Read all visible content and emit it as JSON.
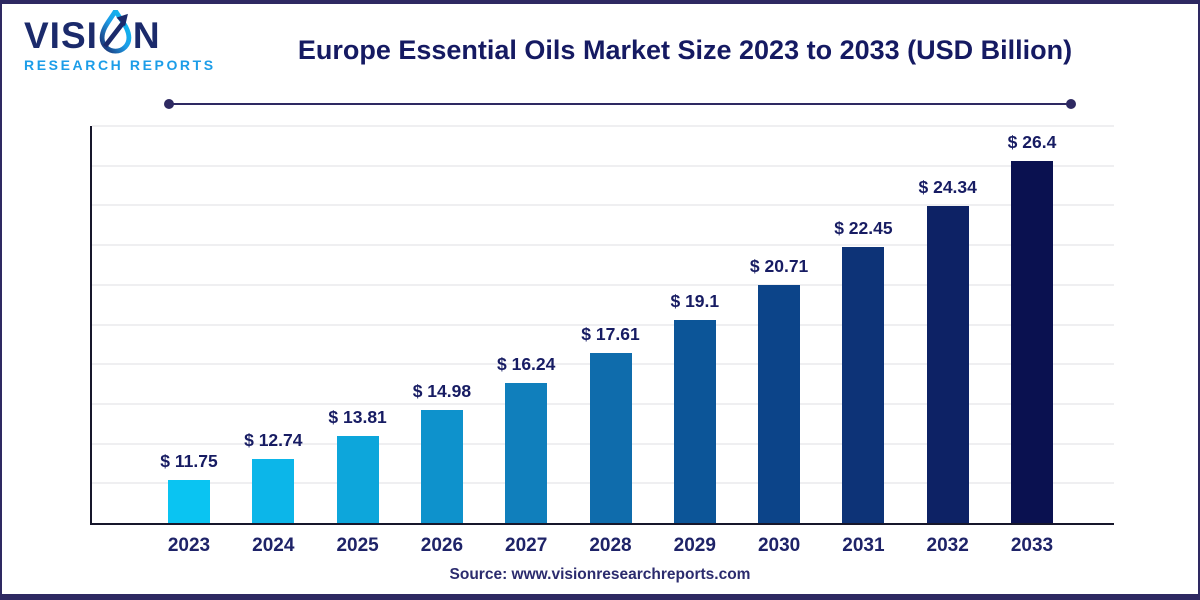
{
  "brand": {
    "name_part1": "VISI",
    "name_part2": "N",
    "subtitle": "RESEARCH REPORTS",
    "droplet_icon": "water-droplet-arrow",
    "color_primary": "#1B2A6B",
    "color_secondary": "#1C9DE8"
  },
  "header": {
    "title": "Europe Essential Oils Market Size 2023 to 2033 (USD Billion)"
  },
  "footer": {
    "source_text": "Source: www.visionresearchreports.com"
  },
  "colors": {
    "frame": "#2E2962",
    "title_text": "#151A62",
    "value_label_text": "#171C63",
    "tick_label_text": "#1E2368",
    "axis": "#17172B",
    "gridline": "#EFEFF1"
  },
  "chart_data": {
    "type": "bar",
    "title": "Europe Essential Oils Market Size 2023 to 2033 (USD Billion)",
    "unit": "USD Billion",
    "categories": [
      "2023",
      "2024",
      "2025",
      "2026",
      "2027",
      "2028",
      "2029",
      "2030",
      "2031",
      "2032",
      "2033"
    ],
    "values": [
      11.75,
      12.74,
      13.81,
      14.98,
      16.24,
      17.61,
      19.1,
      20.71,
      22.45,
      24.34,
      26.4
    ],
    "value_labels": [
      "$ 11.75",
      "$ 12.74",
      "$ 13.81",
      "$ 14.98",
      "$ 16.24",
      "$ 17.61",
      "$ 19.1",
      "$ 20.71",
      "$ 22.45",
      "$ 24.34",
      "$ 26.4"
    ],
    "bar_colors": [
      "#0AC4F2",
      "#0CB6E9",
      "#0DA6DB",
      "#0E92CC",
      "#107FBC",
      "#0F6CAC",
      "#0C5598",
      "#0C4489",
      "#0D3377",
      "#0D2265",
      "#0A1150"
    ],
    "xlabel": "",
    "ylabel": "",
    "ylim": [
      9.8,
      28
    ],
    "grid": true,
    "gridline_count": 10,
    "legend": "none"
  }
}
